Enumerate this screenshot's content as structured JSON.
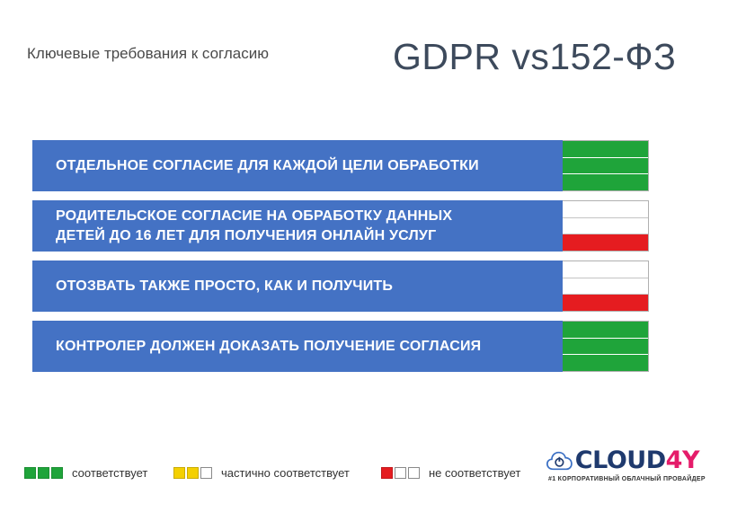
{
  "header": {
    "subtitle": "Ключевые требования к согласию",
    "title": "GDPR vs152-ФЗ"
  },
  "requirements": [
    {
      "label": "Отдельное согласие для каждой цели обработки",
      "status": "соответствует",
      "cells": [
        "green",
        "green",
        "green"
      ]
    },
    {
      "label": "Родительское согласие на обработку данных\nдетей до 16 лет для получения онлайн услуг",
      "status": "не соответствует",
      "cells": [
        "white",
        "white",
        "red"
      ]
    },
    {
      "label": "Отозвать также просто, как и получить",
      "status": "не соответствует",
      "cells": [
        "white",
        "white",
        "red"
      ]
    },
    {
      "label": "Контролер должен доказать получение согласия",
      "status": "соответствует",
      "cells": [
        "green",
        "green",
        "green"
      ]
    }
  ],
  "legend": [
    {
      "label": "соответствует",
      "boxes": [
        "green",
        "green",
        "green"
      ]
    },
    {
      "label": "частично соответствует",
      "boxes": [
        "yellow",
        "yellow",
        "white"
      ]
    },
    {
      "label": "не соответствует",
      "boxes": [
        "red",
        "white",
        "white"
      ]
    }
  ],
  "logo": {
    "name_main": "CLOUD",
    "name_accent": "4Y",
    "tagline": "#1 КОРПОРАТИВНЫЙ ОБЛАЧНЫЙ ПРОВАЙДЕР",
    "icon": "cloud-power-icon"
  },
  "colors": {
    "row_bg": "#4472c4",
    "green": "#1fa43a",
    "red": "#e51c20",
    "yellow": "#f4d000",
    "logo_blue": "#1f3a6e",
    "logo_accent": "#e51c6a"
  }
}
